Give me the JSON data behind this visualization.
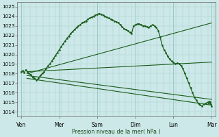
{
  "xlabel": "Pression niveau de la mer( hPa )",
  "bg_color": "#cce8e8",
  "grid_color_minor": "#aacccc",
  "grid_color_major": "#88bbbb",
  "line_color": "#1a5c1a",
  "ylim": [
    1013.5,
    1025.5
  ],
  "xlim": [
    -0.1,
    5.1
  ],
  "yticks": [
    1014,
    1015,
    1016,
    1017,
    1018,
    1019,
    1020,
    1021,
    1022,
    1023,
    1024,
    1025
  ],
  "xtick_labels": [
    "Ven",
    "Mer",
    "Sam",
    "Dim",
    "Lun",
    "Mar"
  ],
  "xtick_pos": [
    0,
    1,
    2,
    3,
    4,
    5
  ],
  "minor_x_step": 0.1667,
  "figsize": [
    3.2,
    2.0
  ],
  "dpi": 100,
  "main_line": {
    "x": [
      0.0,
      0.04,
      0.08,
      0.12,
      0.16,
      0.2,
      0.25,
      0.3,
      0.35,
      0.4,
      0.45,
      0.5,
      0.55,
      0.6,
      0.65,
      0.7,
      0.75,
      0.8,
      0.85,
      0.9,
      0.95,
      1.0,
      1.05,
      1.1,
      1.15,
      1.2,
      1.25,
      1.3,
      1.35,
      1.4,
      1.45,
      1.5,
      1.55,
      1.6,
      1.65,
      1.7,
      1.75,
      1.8,
      1.85,
      1.9,
      1.95,
      2.0,
      2.05,
      2.1,
      2.15,
      2.2,
      2.25,
      2.3,
      2.35,
      2.4,
      2.45,
      2.5,
      2.55,
      2.6,
      2.65,
      2.7,
      2.75,
      2.8,
      2.85,
      2.9,
      2.95,
      3.0,
      3.05,
      3.1,
      3.15,
      3.2,
      3.25,
      3.3,
      3.35,
      3.4,
      3.45,
      3.5,
      3.55,
      3.6,
      3.65,
      3.7,
      3.75,
      3.8,
      3.85,
      3.9,
      3.95,
      4.0,
      4.05,
      4.1,
      4.15,
      4.2,
      4.25,
      4.3,
      4.35,
      4.4,
      4.45,
      4.5,
      4.55,
      4.6,
      4.65,
      4.7,
      4.75,
      4.8,
      4.85,
      4.9,
      4.92,
      4.94,
      4.96,
      4.98,
      5.0
    ],
    "y": [
      1018.2,
      1018.3,
      1018.1,
      1018.4,
      1018.2,
      1018.0,
      1017.9,
      1017.6,
      1017.5,
      1017.3,
      1017.5,
      1017.8,
      1018.0,
      1018.2,
      1018.5,
      1018.8,
      1019.0,
      1019.3,
      1019.6,
      1019.9,
      1020.2,
      1020.5,
      1020.8,
      1021.1,
      1021.4,
      1021.7,
      1021.9,
      1022.2,
      1022.4,
      1022.6,
      1022.8,
      1023.0,
      1023.1,
      1023.3,
      1023.4,
      1023.5,
      1023.7,
      1023.8,
      1023.9,
      1024.0,
      1024.1,
      1024.2,
      1024.3,
      1024.2,
      1024.1,
      1024.0,
      1023.9,
      1023.8,
      1023.7,
      1023.6,
      1023.5,
      1023.4,
      1023.3,
      1023.1,
      1022.9,
      1022.7,
      1022.6,
      1022.5,
      1022.3,
      1022.2,
      1023.0,
      1023.1,
      1023.2,
      1023.2,
      1023.1,
      1023.0,
      1023.0,
      1022.9,
      1022.8,
      1023.0,
      1023.1,
      1023.0,
      1022.8,
      1022.5,
      1021.8,
      1021.0,
      1020.5,
      1020.2,
      1019.8,
      1019.5,
      1019.3,
      1019.2,
      1019.0,
      1019.1,
      1019.0,
      1018.8,
      1018.5,
      1018.0,
      1017.5,
      1017.0,
      1016.5,
      1016.0,
      1015.5,
      1015.2,
      1014.9,
      1014.7,
      1014.6,
      1014.8,
      1014.9,
      1015.0,
      1014.9,
      1015.1,
      1015.0,
      1014.8,
      1014.6
    ]
  },
  "forecast_lines": [
    {
      "x": [
        0.15,
        5.0
      ],
      "y": [
        1018.2,
        1019.2
      ]
    },
    {
      "x": [
        0.15,
        5.0
      ],
      "y": [
        1018.0,
        1023.3
      ]
    },
    {
      "x": [
        0.15,
        5.0
      ],
      "y": [
        1017.8,
        1015.3
      ]
    },
    {
      "x": [
        0.15,
        5.0
      ],
      "y": [
        1017.5,
        1014.7
      ]
    }
  ]
}
